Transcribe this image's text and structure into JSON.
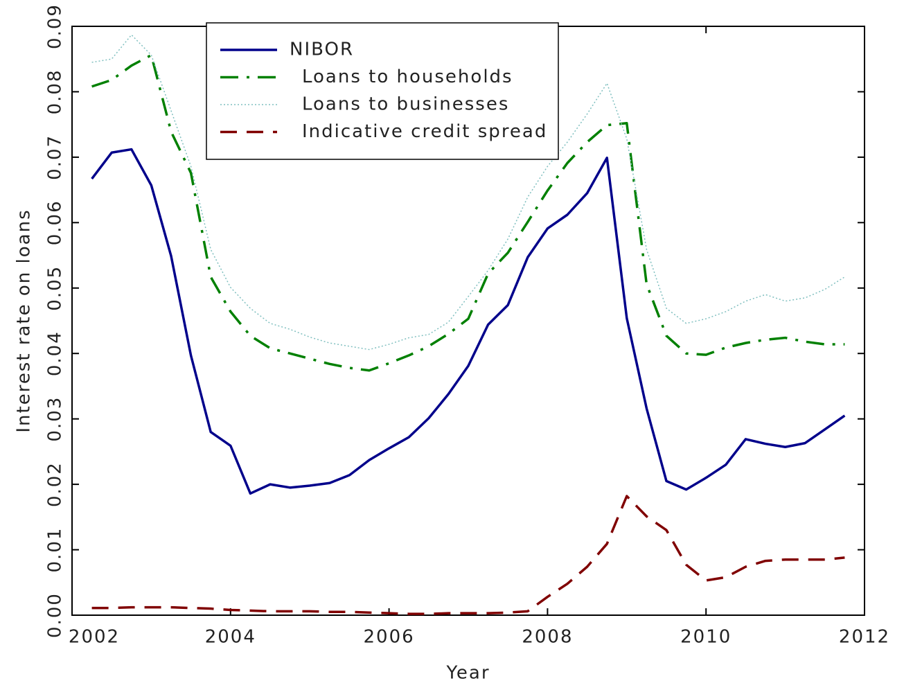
{
  "chart_data": {
    "type": "line",
    "xlabel": "Year",
    "ylabel": "Interest rate on loans",
    "x": [
      2002.25,
      2002.5,
      2002.75,
      2003,
      2003.25,
      2003.5,
      2003.75,
      2004,
      2004.25,
      2004.5,
      2004.75,
      2005,
      2005.25,
      2005.5,
      2005.75,
      2006,
      2006.25,
      2006.5,
      2006.75,
      2007,
      2007.25,
      2007.5,
      2007.75,
      2008,
      2008.25,
      2008.5,
      2008.75,
      2009,
      2009.25,
      2009.5,
      2009.75,
      2010,
      2010.25,
      2010.5,
      2010.75,
      2011,
      2011.25,
      2011.5,
      2011.75
    ],
    "series": [
      {
        "name": "NIBOR",
        "color": "#00008b",
        "linestyle": "solid",
        "values": [
          0.0667,
          0.0707,
          0.0712,
          0.0657,
          0.0549,
          0.0397,
          0.028,
          0.0259,
          0.0186,
          0.02,
          0.0195,
          0.0198,
          0.0202,
          0.0214,
          0.0237,
          0.0255,
          0.0272,
          0.0301,
          0.0338,
          0.0381,
          0.0444,
          0.0474,
          0.0547,
          0.0591,
          0.0612,
          0.0645,
          0.0699,
          0.0454,
          0.0316,
          0.0205,
          0.0192,
          0.021,
          0.023,
          0.0269,
          0.0262,
          0.0257,
          0.0263,
          0.0284,
          0.0305
        ]
      },
      {
        "name": "Loans to households",
        "color": "#008000",
        "linestyle": "dashdot",
        "values": [
          0.0808,
          0.0818,
          0.084,
          0.0856,
          0.0739,
          0.0676,
          0.0517,
          0.0464,
          0.0427,
          0.0408,
          0.04,
          0.0392,
          0.0384,
          0.0378,
          0.0374,
          0.0385,
          0.0397,
          0.0411,
          0.043,
          0.0453,
          0.0522,
          0.0554,
          0.0601,
          0.0649,
          0.0691,
          0.0723,
          0.0749,
          0.0752,
          0.0506,
          0.0427,
          0.04,
          0.0398,
          0.0409,
          0.0416,
          0.0421,
          0.0424,
          0.0418,
          0.0414,
          0.0414
        ]
      },
      {
        "name": "Loans to businesses",
        "color": "#7fbfbf",
        "linestyle": "dotted",
        "values": [
          0.0845,
          0.085,
          0.0887,
          0.0856,
          0.0771,
          0.0686,
          0.0559,
          0.0501,
          0.0469,
          0.0446,
          0.0437,
          0.0425,
          0.0416,
          0.0411,
          0.0406,
          0.0414,
          0.0424,
          0.0429,
          0.0448,
          0.0487,
          0.0527,
          0.0575,
          0.0639,
          0.0686,
          0.0723,
          0.0766,
          0.0813,
          0.0728,
          0.0559,
          0.0469,
          0.0446,
          0.0453,
          0.0464,
          0.048,
          0.049,
          0.048,
          0.0485,
          0.0498,
          0.0517
        ]
      },
      {
        "name": "Indicative credit spread",
        "color": "#800000",
        "linestyle": "dashed",
        "values": [
          0.0011,
          0.0011,
          0.0012,
          0.0012,
          0.0012,
          0.0011,
          0.001,
          0.0008,
          0.0007,
          0.0006,
          0.0006,
          0.0006,
          0.0005,
          0.0005,
          0.0004,
          0.0003,
          0.0002,
          0.0002,
          0.0003,
          0.0003,
          0.0003,
          0.0004,
          0.0006,
          0.0028,
          0.0048,
          0.0074,
          0.0109,
          0.0182,
          0.0151,
          0.013,
          0.0077,
          0.0053,
          0.0058,
          0.0074,
          0.0083,
          0.0085,
          0.0085,
          0.0085,
          0.0088
        ]
      }
    ],
    "xlim": [
      2002,
      2012
    ],
    "xticks": [
      2002,
      2004,
      2006,
      2008,
      2010,
      2012
    ],
    "ylim": [
      0,
      0.09
    ],
    "yticks": [
      {
        "value": 0,
        "label": "0.00"
      },
      0.01,
      0.02,
      0.03,
      0.04,
      0.05,
      0.06,
      0.07,
      0.08,
      0.09
    ],
    "legend": "upper left",
    "grid": false
  }
}
